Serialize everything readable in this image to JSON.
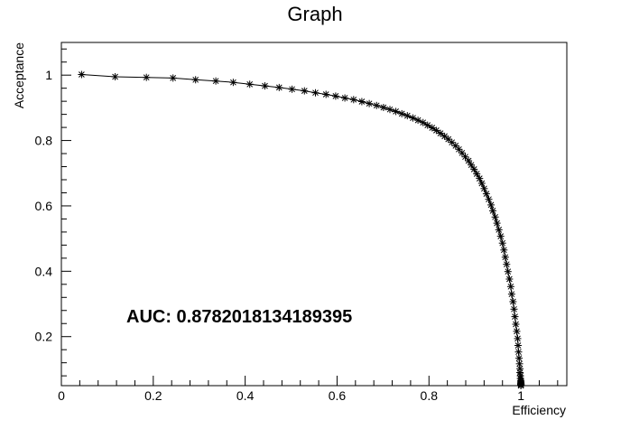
{
  "chart_data": {
    "type": "line",
    "title": "Graph",
    "xlabel": "Efficiency",
    "ylabel": "Acceptance",
    "annotation": "AUC: 0.8782018134189395",
    "xlim": [
      0,
      1.1
    ],
    "ylim": [
      0.05,
      1.1
    ],
    "grid": false,
    "x_ticks": [
      0,
      0.2,
      0.4,
      0.6,
      0.8,
      1
    ],
    "x_tick_labels": [
      "0",
      "0.2",
      "0.4",
      "0.6",
      "0.8",
      "1"
    ],
    "y_ticks": [
      0.2,
      0.4,
      0.6,
      0.8,
      1
    ],
    "y_tick_labels": [
      "0.2",
      "0.4",
      "0.6",
      "0.8",
      "1"
    ],
    "marker": "asterisk",
    "series": [
      {
        "x": [
          0.044,
          0.117,
          0.185,
          0.243,
          0.292,
          0.336,
          0.374,
          0.41,
          0.443,
          0.474,
          0.502,
          0.529,
          0.553,
          0.576,
          0.597,
          0.617,
          0.636,
          0.654,
          0.67,
          0.686,
          0.701,
          0.715,
          0.728,
          0.741,
          0.753,
          0.765,
          0.776,
          0.787,
          0.797,
          0.807,
          0.816,
          0.825,
          0.834,
          0.842,
          0.85,
          0.858,
          0.865,
          0.872,
          0.879,
          0.886,
          0.892,
          0.898,
          0.904,
          0.91,
          0.915,
          0.92,
          0.925,
          0.93,
          0.935,
          0.939,
          0.944,
          0.948,
          0.952,
          0.956,
          0.96,
          0.963,
          0.966,
          0.969,
          0.972,
          0.975,
          0.978,
          0.98,
          0.983,
          0.985,
          0.987,
          0.989,
          0.991,
          0.993,
          0.994,
          0.995,
          0.996,
          0.997,
          0.998,
          0.998,
          0.999,
          0.999,
          1.0,
          1.0,
          1.0,
          1.0,
          1.0,
          1.0,
          1.0,
          1.0,
          1.0,
          1.0
        ],
        "y": [
          1.002,
          0.995,
          0.993,
          0.991,
          0.986,
          0.982,
          0.978,
          0.972,
          0.967,
          0.962,
          0.957,
          0.952,
          0.946,
          0.941,
          0.936,
          0.93,
          0.925,
          0.919,
          0.913,
          0.907,
          0.901,
          0.895,
          0.889,
          0.882,
          0.876,
          0.869,
          0.862,
          0.855,
          0.847,
          0.839,
          0.831,
          0.822,
          0.813,
          0.804,
          0.794,
          0.784,
          0.773,
          0.762,
          0.75,
          0.738,
          0.725,
          0.712,
          0.698,
          0.684,
          0.669,
          0.653,
          0.637,
          0.62,
          0.603,
          0.585,
          0.566,
          0.547,
          0.527,
          0.507,
          0.486,
          0.465,
          0.443,
          0.421,
          0.399,
          0.376,
          0.353,
          0.33,
          0.307,
          0.284,
          0.261,
          0.238,
          0.216,
          0.194,
          0.173,
          0.153,
          0.134,
          0.117,
          0.102,
          0.09,
          0.08,
          0.072,
          0.066,
          0.062,
          0.059,
          0.057,
          0.055,
          0.054,
          0.053,
          0.052,
          0.051,
          0.05
        ]
      }
    ]
  }
}
